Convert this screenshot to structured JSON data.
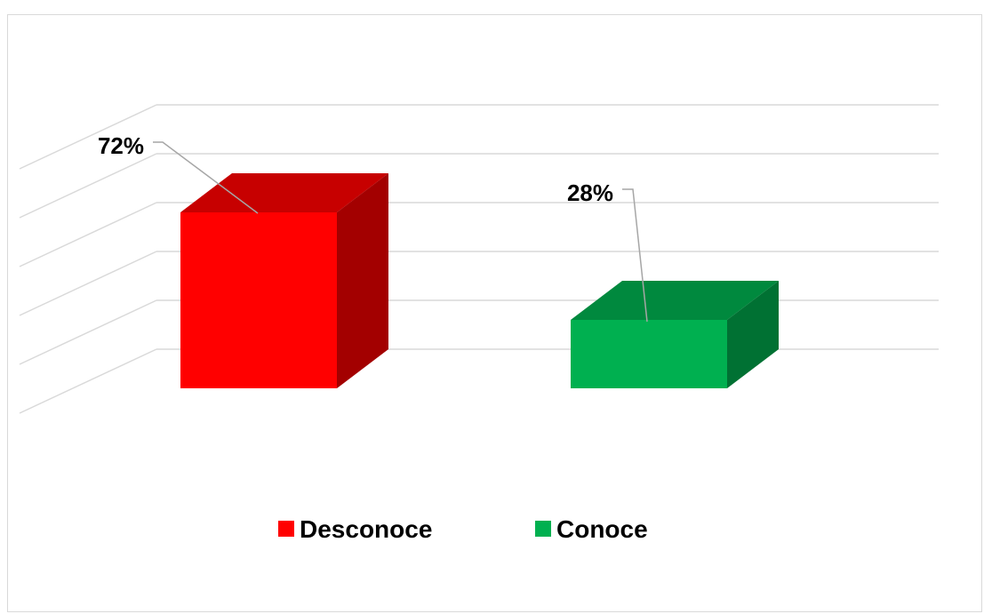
{
  "chart_data": {
    "type": "bar",
    "style": "3d-column",
    "title": "",
    "xlabel": "",
    "ylabel": "",
    "categories": [
      "Desconoce",
      "Conoce"
    ],
    "values": [
      72,
      28
    ],
    "value_labels": [
      "72%",
      "28%"
    ],
    "colors": {
      "Desconoce": "#ff0000",
      "Conoce": "#00b050"
    },
    "ylim": [
      0,
      100
    ],
    "grid": true,
    "legend": {
      "placement": "bottom",
      "entries": [
        "Desconoce",
        "Conoce"
      ]
    }
  }
}
